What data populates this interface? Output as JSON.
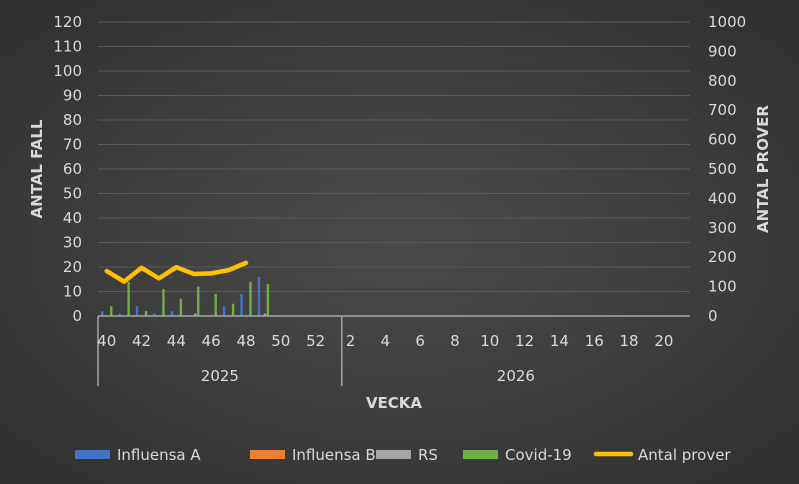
{
  "chart_data": {
    "type": "bar+line",
    "xlabel": "VECKA",
    "ylabel_left": "ANTAL FALL",
    "ylabel_right": "ANTAL PROVER",
    "ylim_left": [
      0,
      120
    ],
    "ylim_right": [
      0,
      1000
    ],
    "yticks_left": [
      "0",
      "10",
      "20",
      "30",
      "40",
      "50",
      "60",
      "70",
      "80",
      "90",
      "100",
      "110",
      "120"
    ],
    "yticks_right": [
      "0",
      "100",
      "200",
      "300",
      "400",
      "500",
      "600",
      "700",
      "800",
      "900",
      "1000"
    ],
    "grid": true,
    "legend_position": "bottom",
    "groups": [
      {
        "label": "2025",
        "weeks": [
          40,
          41,
          42,
          43,
          44,
          45,
          46,
          47,
          48,
          49,
          50,
          51,
          52,
          53
        ],
        "tick_labels": [
          "40",
          "42",
          "44",
          "46",
          "48",
          "50",
          "52"
        ]
      },
      {
        "label": "2026",
        "weeks": [
          2,
          3,
          4,
          5,
          6,
          7,
          8,
          9,
          10,
          11,
          12,
          13,
          14,
          15,
          16,
          17,
          18,
          19,
          20,
          21
        ],
        "tick_labels": [
          "2",
          "4",
          "6",
          "8",
          "10",
          "12",
          "14",
          "16",
          "18",
          "20"
        ]
      }
    ],
    "series": [
      {
        "name": "Influensa A",
        "type": "bar",
        "axis": "left",
        "color": "#4472c4",
        "values": [
          2,
          1,
          4,
          1,
          2,
          0,
          0,
          4,
          9,
          16
        ]
      },
      {
        "name": "Influensa B",
        "type": "bar",
        "axis": "left",
        "color": "#ed7d31",
        "values": [
          0,
          0,
          0,
          0,
          0,
          0,
          0,
          0,
          0,
          0
        ]
      },
      {
        "name": "RS",
        "type": "bar",
        "axis": "left",
        "color": "#a5a5a5",
        "values": [
          0,
          0,
          0,
          0,
          0,
          1,
          0,
          0,
          0,
          1
        ]
      },
      {
        "name": "Covid-19",
        "type": "bar",
        "axis": "left",
        "color": "#70ad47",
        "values": [
          4,
          14,
          2,
          11,
          7,
          12,
          9,
          5,
          14,
          13
        ]
      },
      {
        "name": "Antal prover",
        "type": "line",
        "axis": "right",
        "color": "#ffc000",
        "values": [
          153,
          117,
          164,
          128,
          166,
          143,
          145,
          156,
          181
        ]
      }
    ]
  }
}
